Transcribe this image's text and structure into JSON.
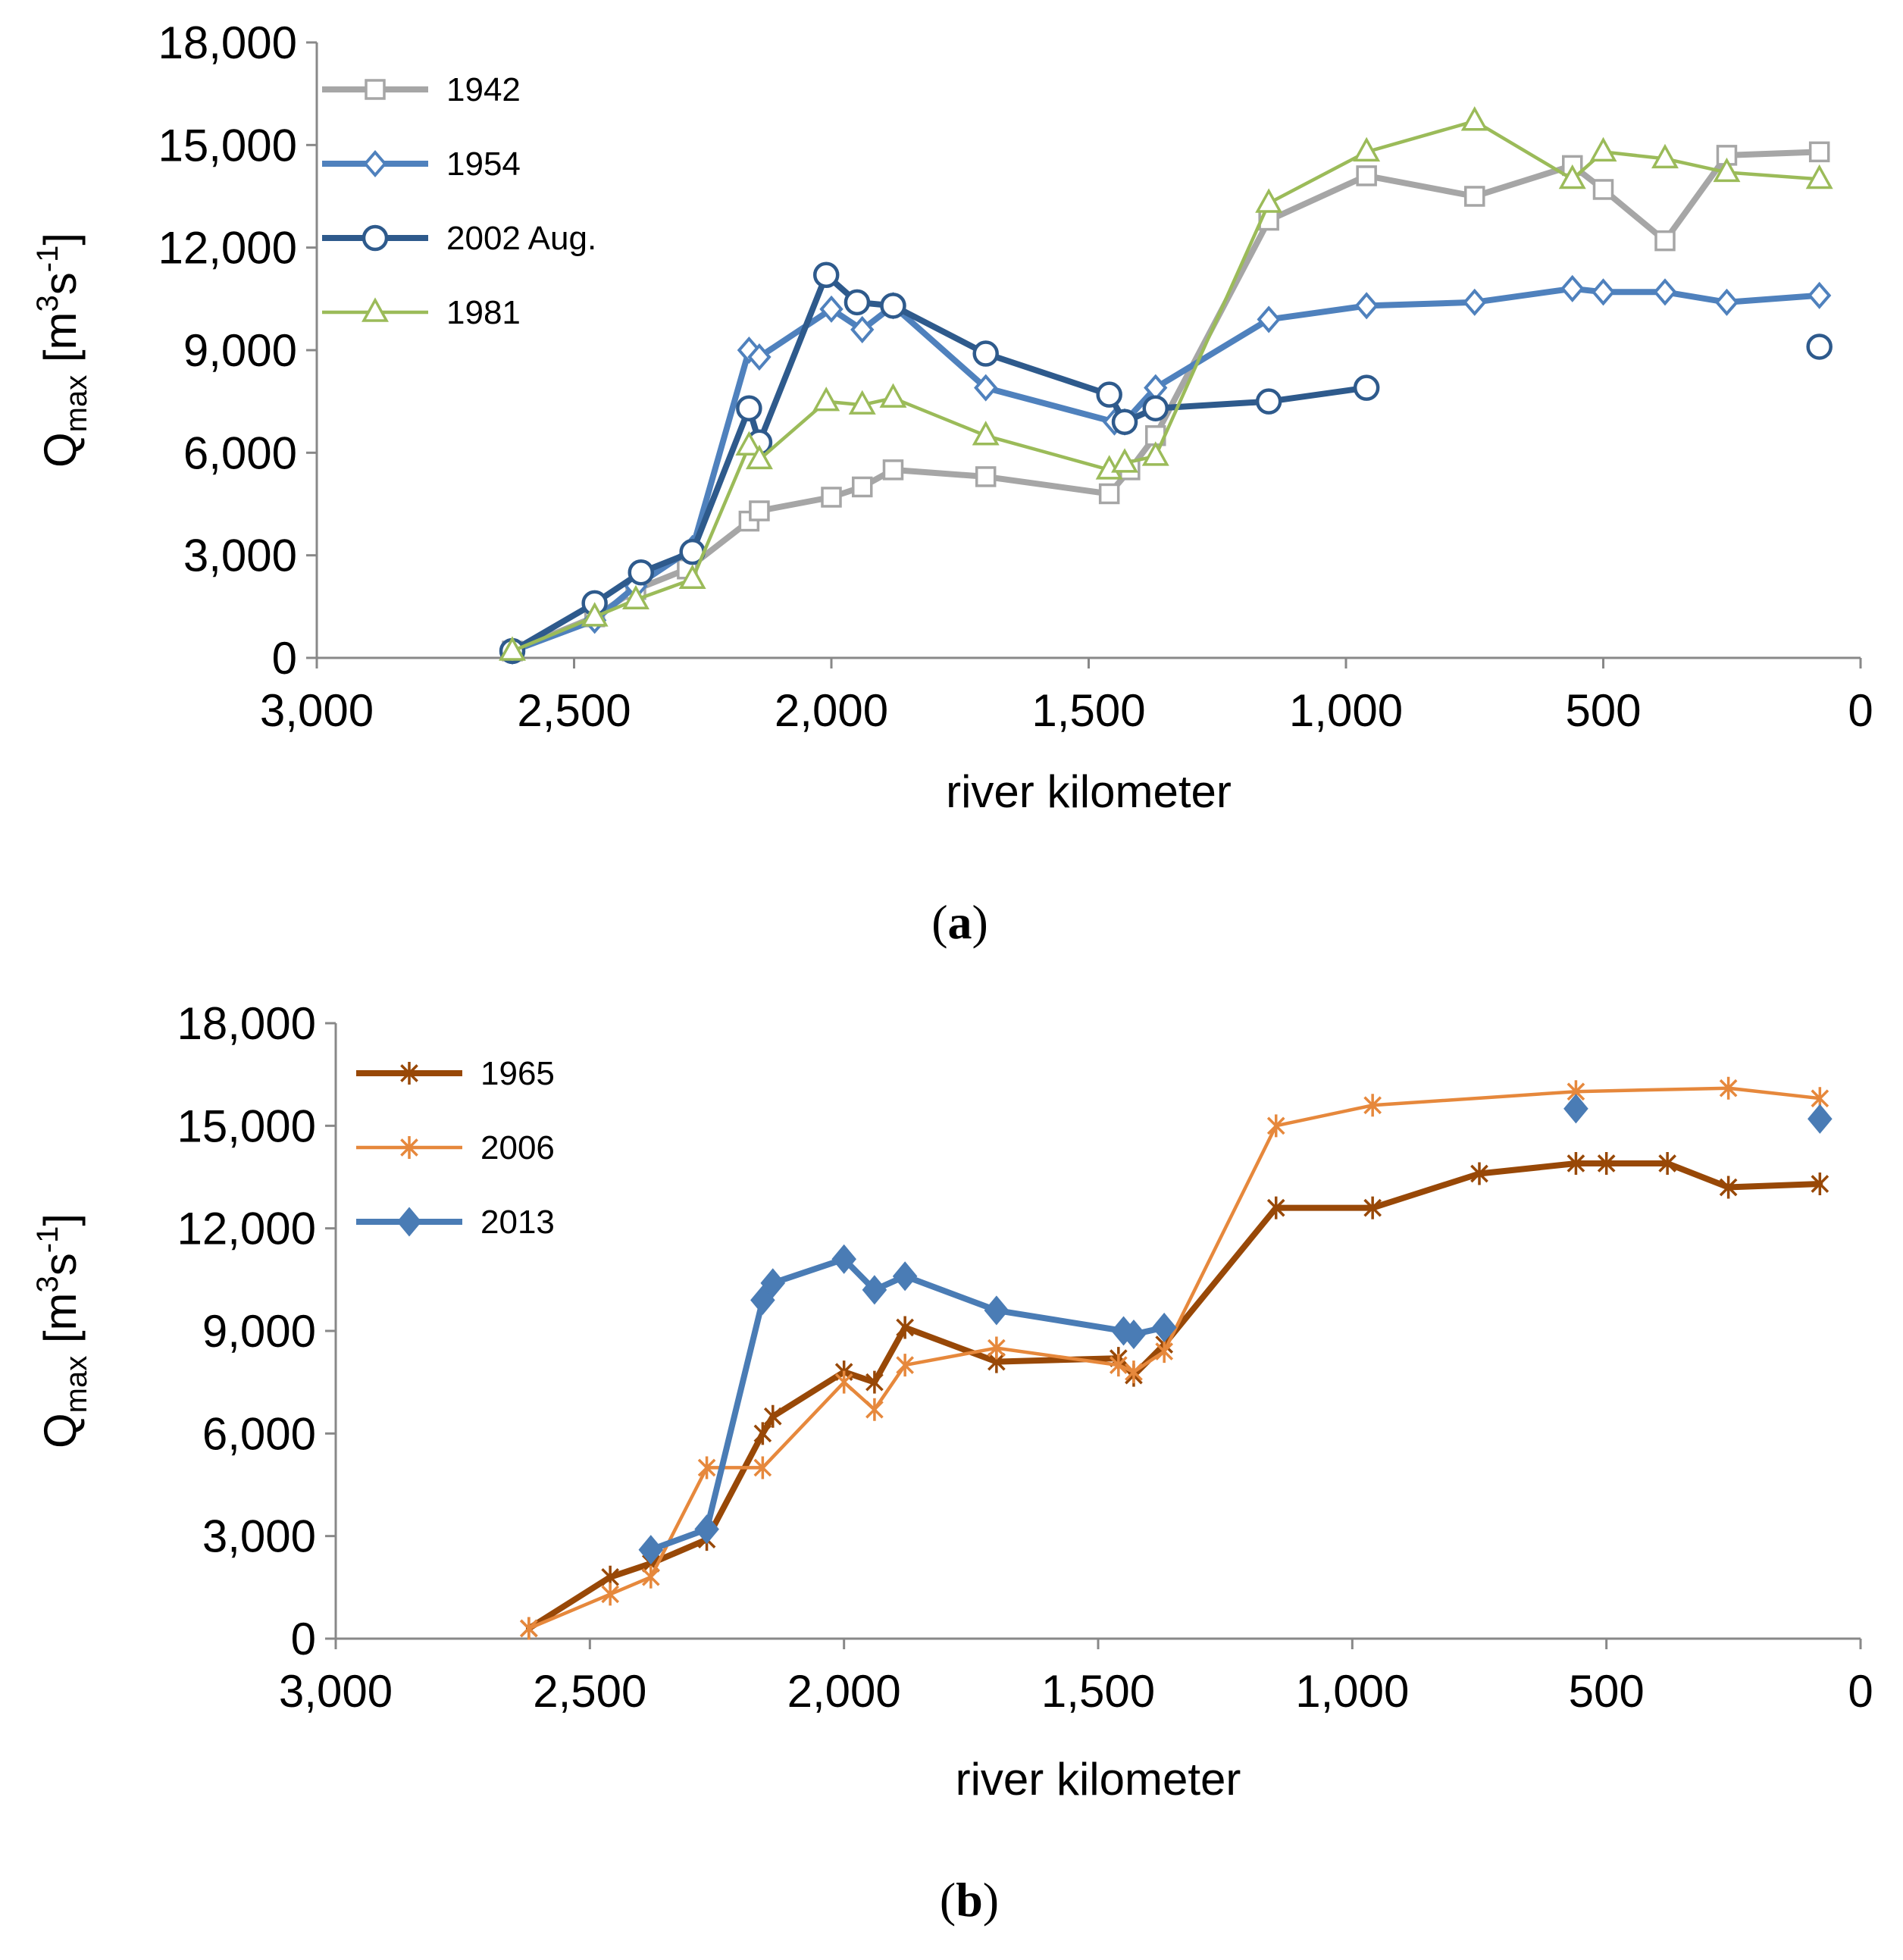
{
  "chart_data": [
    {
      "type": "line",
      "panel_label": "a",
      "xlabel": "river kilometer",
      "ylabel": {
        "base": "Q",
        "subscript": "max",
        "unit_open": " [m",
        "unit_exp1": "3",
        "unit_mid": "s",
        "unit_exp2": "-1",
        "unit_close": "]"
      },
      "xlim": [
        3000,
        0
      ],
      "ylim": [
        0,
        18000
      ],
      "x_ticks": [
        3000,
        2500,
        2000,
        1500,
        1000,
        500,
        0
      ],
      "x_tick_labels": [
        "3,000",
        "2,500",
        "2,000",
        "1,500",
        "1,000",
        "500",
        "0"
      ],
      "y_ticks": [
        0,
        3000,
        6000,
        9000,
        12000,
        15000,
        18000
      ],
      "y_tick_labels": [
        "0",
        "3,000",
        "6,000",
        "9,000",
        "12,000",
        "15,000",
        "18,000"
      ],
      "legend_position": "top-left",
      "series": [
        {
          "name": "1942",
          "color": "#A6A6A6",
          "marker": "square",
          "line": "thick",
          "segments": [
            [
              [
                2620,
                200
              ],
              [
                2460,
                1200
              ],
              [
                2380,
                2000
              ],
              [
                2280,
                2600
              ],
              [
                2160,
                4000
              ],
              [
                2140,
                4300
              ],
              [
                2000,
                4700
              ],
              [
                1940,
                5000
              ],
              [
                1880,
                5500
              ],
              [
                1700,
                5300
              ],
              [
                1460,
                4800
              ],
              [
                1420,
                5500
              ],
              [
                1370,
                6500
              ],
              [
                1150,
                12800
              ],
              [
                960,
                14100
              ],
              [
                750,
                13500
              ],
              [
                560,
                14400
              ],
              [
                500,
                13700
              ],
              [
                380,
                12200
              ],
              [
                260,
                14700
              ],
              [
                80,
                14800
              ]
            ]
          ]
        },
        {
          "name": "1954",
          "color": "#4F81BD",
          "marker": "diamond",
          "line": "thick",
          "segments": [
            [
              [
                2620,
                200
              ],
              [
                2460,
                1100
              ],
              [
                2380,
                2100
              ],
              [
                2270,
                3200
              ],
              [
                2160,
                9000
              ],
              [
                2140,
                8800
              ],
              [
                2000,
                10200
              ],
              [
                1940,
                9600
              ],
              [
                1880,
                10300
              ],
              [
                1700,
                7900
              ],
              [
                1450,
                6900
              ],
              [
                1430,
                6900
              ],
              [
                1370,
                7900
              ],
              [
                1150,
                9900
              ],
              [
                960,
                10300
              ],
              [
                750,
                10400
              ],
              [
                560,
                10800
              ],
              [
                500,
                10700
              ],
              [
                380,
                10700
              ],
              [
                260,
                10400
              ],
              [
                80,
                10600
              ]
            ]
          ]
        },
        {
          "name": "2002 Aug.",
          "color": "#2E5A8C",
          "marker": "circle",
          "line": "thick",
          "segments": [
            [
              [
                2620,
                200
              ],
              [
                2460,
                1600
              ],
              [
                2370,
                2500
              ],
              [
                2270,
                3100
              ],
              [
                2160,
                7300
              ],
              [
                2140,
                6300
              ],
              [
                2010,
                11200
              ],
              [
                1950,
                10400
              ],
              [
                1880,
                10300
              ],
              [
                1700,
                8900
              ],
              [
                1460,
                7700
              ],
              [
                1430,
                6900
              ],
              [
                1370,
                7300
              ],
              [
                1150,
                7500
              ],
              [
                960,
                7900
              ]
            ],
            [
              [
                80,
                9100
              ]
            ]
          ]
        },
        {
          "name": "1981",
          "color": "#9BBB59",
          "marker": "triangle",
          "line": "thin",
          "segments": [
            [
              [
                2620,
                200
              ],
              [
                2460,
                1200
              ],
              [
                2380,
                1700
              ],
              [
                2270,
                2300
              ],
              [
                2160,
                6200
              ],
              [
                2140,
                5800
              ],
              [
                2010,
                7500
              ],
              [
                1940,
                7400
              ],
              [
                1880,
                7600
              ],
              [
                1700,
                6500
              ],
              [
                1460,
                5500
              ],
              [
                1430,
                5700
              ],
              [
                1370,
                5900
              ],
              [
                1150,
                13300
              ],
              [
                960,
                14800
              ],
              [
                750,
                15700
              ],
              [
                560,
                14000
              ],
              [
                500,
                14800
              ],
              [
                380,
                14600
              ],
              [
                260,
                14200
              ],
              [
                80,
                14000
              ]
            ]
          ]
        }
      ]
    },
    {
      "type": "line",
      "panel_label": "b",
      "xlabel": "river kilometer",
      "ylabel": {
        "base": "Q",
        "subscript": "max",
        "unit_open": " [m",
        "unit_exp1": "3",
        "unit_mid": "s",
        "unit_exp2": "-1",
        "unit_close": "]"
      },
      "xlim": [
        3000,
        0
      ],
      "ylim": [
        0,
        18000
      ],
      "x_ticks": [
        3000,
        2500,
        2000,
        1500,
        1000,
        500,
        0
      ],
      "x_tick_labels": [
        "3,000",
        "2,500",
        "2,000",
        "1,500",
        "1,000",
        "500",
        "0"
      ],
      "y_ticks": [
        0,
        3000,
        6000,
        9000,
        12000,
        15000,
        18000
      ],
      "y_tick_labels": [
        "0",
        "3,000",
        "6,000",
        "9,000",
        "12,000",
        "15,000",
        "18,000"
      ],
      "legend_position": "top-left",
      "series": [
        {
          "name": "1965",
          "color": "#984807",
          "marker": "star",
          "line": "thick",
          "segments": [
            [
              [
                2620,
                300
              ],
              [
                2460,
                1800
              ],
              [
                2380,
                2200
              ],
              [
                2270,
                2900
              ],
              [
                2160,
                6000
              ],
              [
                2140,
                6500
              ],
              [
                2000,
                7800
              ],
              [
                1940,
                7500
              ],
              [
                1880,
                9100
              ],
              [
                1700,
                8100
              ],
              [
                1460,
                8200
              ],
              [
                1430,
                7700
              ],
              [
                1370,
                8600
              ],
              [
                1150,
                12600
              ],
              [
                960,
                12600
              ],
              [
                750,
                13600
              ],
              [
                560,
                13900
              ],
              [
                500,
                13900
              ],
              [
                380,
                13900
              ],
              [
                260,
                13200
              ],
              [
                80,
                13300
              ]
            ]
          ]
        },
        {
          "name": "2006",
          "color": "#E6883C",
          "marker": "star",
          "line": "thin",
          "segments": [
            [
              [
                2620,
                300
              ],
              [
                2460,
                1300
              ],
              [
                2380,
                1800
              ],
              [
                2270,
                5000
              ],
              [
                2160,
                5000
              ],
              [
                2000,
                7500
              ],
              [
                1940,
                6700
              ],
              [
                1880,
                8000
              ],
              [
                1700,
                8500
              ],
              [
                1460,
                8000
              ],
              [
                1430,
                7800
              ],
              [
                1370,
                8400
              ],
              [
                1150,
                15000
              ],
              [
                960,
                15600
              ],
              [
                560,
                16000
              ],
              [
                260,
                16100
              ],
              [
                80,
                15800
              ]
            ]
          ]
        },
        {
          "name": "2013",
          "color": "#4A7CB5",
          "marker": "diamond-filled",
          "line": "thick",
          "segments": [
            [
              [
                2380,
                2600
              ],
              [
                2270,
                3200
              ],
              [
                2160,
                9900
              ],
              [
                2140,
                10400
              ],
              [
                2000,
                11100
              ],
              [
                1940,
                10200
              ],
              [
                1880,
                10600
              ],
              [
                1700,
                9600
              ],
              [
                1450,
                9000
              ],
              [
                1430,
                8900
              ],
              [
                1370,
                9100
              ]
            ],
            [
              [
                560,
                15500
              ]
            ],
            [
              [
                80,
                15200
              ]
            ]
          ]
        }
      ]
    }
  ]
}
